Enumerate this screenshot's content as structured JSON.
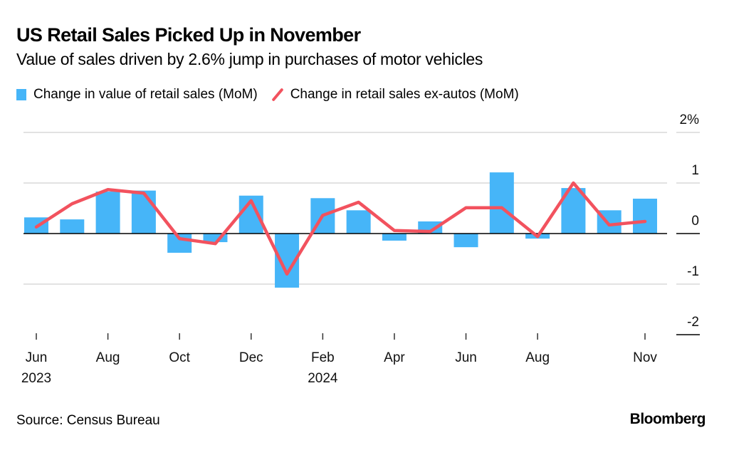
{
  "header": {
    "title": "US Retail Sales Picked Up in November",
    "subtitle": "Value of sales driven by 2.6% jump in purchases of motor vehicles"
  },
  "footer": {
    "source": "Source: Census Bureau",
    "brand": "Bloomberg"
  },
  "colors": {
    "bar": "#46B5F8",
    "line": "#F2525E",
    "grid": "#d9d9d9",
    "axis": "#000000"
  },
  "chart_data": {
    "type": "bar",
    "title": "US Retail Sales Picked Up in November",
    "subtitle": "Value of sales driven by 2.6% jump in purchases of motor vehicles",
    "xlabel": "",
    "ylabel": "",
    "ylim": [
      -2,
      2
    ],
    "yticks": [
      2,
      1,
      0,
      -1,
      -2
    ],
    "ytick_labels": [
      "2%",
      "1",
      "0",
      "-1",
      "-2"
    ],
    "grid": true,
    "legend_position": "top-left",
    "categories": [
      "Jun 2023",
      "Jul 2023",
      "Aug 2023",
      "Sep 2023",
      "Oct 2023",
      "Nov 2023",
      "Dec 2023",
      "Jan 2024",
      "Feb 2024",
      "Mar 2024",
      "Apr 2024",
      "May 2024",
      "Jun 2024",
      "Jul 2024",
      "Aug 2024",
      "Sep 2024",
      "Oct 2024",
      "Nov 2024"
    ],
    "xtick_labels": [
      {
        "index": 0,
        "label": "Jun",
        "year": "2023"
      },
      {
        "index": 2,
        "label": "Aug",
        "year": ""
      },
      {
        "index": 4,
        "label": "Oct",
        "year": ""
      },
      {
        "index": 6,
        "label": "Dec",
        "year": ""
      },
      {
        "index": 8,
        "label": "Feb",
        "year": "2024"
      },
      {
        "index": 10,
        "label": "Apr",
        "year": ""
      },
      {
        "index": 12,
        "label": "Jun",
        "year": ""
      },
      {
        "index": 14,
        "label": "Aug",
        "year": ""
      },
      {
        "index": 17,
        "label": "Nov",
        "year": ""
      }
    ],
    "series": [
      {
        "name": "Change in value of retail sales (MoM)",
        "type": "bar",
        "values": [
          0.32,
          0.28,
          0.83,
          0.85,
          -0.38,
          -0.17,
          0.75,
          -1.07,
          0.7,
          0.46,
          -0.14,
          0.24,
          -0.27,
          1.21,
          -0.1,
          0.9,
          0.46,
          0.69
        ]
      },
      {
        "name": "Change in retail sales ex-autos (MoM)",
        "type": "line",
        "values": [
          0.13,
          0.59,
          0.87,
          0.8,
          -0.1,
          -0.2,
          0.65,
          -0.8,
          0.36,
          0.62,
          0.06,
          0.04,
          0.51,
          0.51,
          -0.06,
          1.0,
          0.17,
          0.24
        ]
      }
    ]
  }
}
